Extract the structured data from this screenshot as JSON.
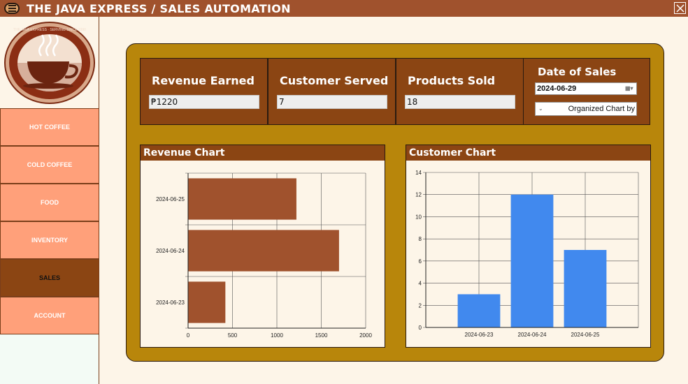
{
  "header": {
    "title": "THE JAVA EXPRESS  /  SALES AUTOMATION"
  },
  "sidebar": {
    "logo_text": "THE JAVA EXPRESS · SERVING SINCE 1990",
    "items": [
      {
        "label": "HOT COFFEE"
      },
      {
        "label": "COLD COFFEE"
      },
      {
        "label": "FOOD"
      },
      {
        "label": "INVENTORY"
      },
      {
        "label": "SALES"
      },
      {
        "label": "ACCOUNT"
      }
    ],
    "active": "SALES"
  },
  "stats": {
    "revenue_label": "Revenue Earned",
    "revenue_value": "₱1220",
    "customers_label": "Customer Served",
    "customers_value": "7",
    "products_label": "Products Sold",
    "products_value": "18"
  },
  "date_filter": {
    "title": "Date of Sales",
    "date_value": "2024-06-29",
    "organize_label": "Organized Chart by"
  },
  "colors": {
    "revenue_bar": "#a0522d",
    "customer_bar": "#4189ee"
  },
  "chart_data": [
    {
      "type": "bar",
      "orientation": "horizontal",
      "title": "Revenue Chart",
      "categories": [
        "2024-06-23",
        "2024-06-24",
        "2024-06-25"
      ],
      "values": [
        420,
        1700,
        1220
      ],
      "xlim": [
        0,
        2000
      ],
      "xticks": [
        0,
        500,
        1000,
        1500,
        2000
      ],
      "grid": true
    },
    {
      "type": "bar",
      "title": "Customer Chart",
      "categories": [
        "2024-06-23",
        "2024-06-24",
        "2024-06-25"
      ],
      "values": [
        3,
        12,
        7
      ],
      "ylim": [
        0,
        14
      ],
      "yticks": [
        0,
        2,
        4,
        6,
        8,
        10,
        12,
        14
      ],
      "grid": true
    }
  ]
}
